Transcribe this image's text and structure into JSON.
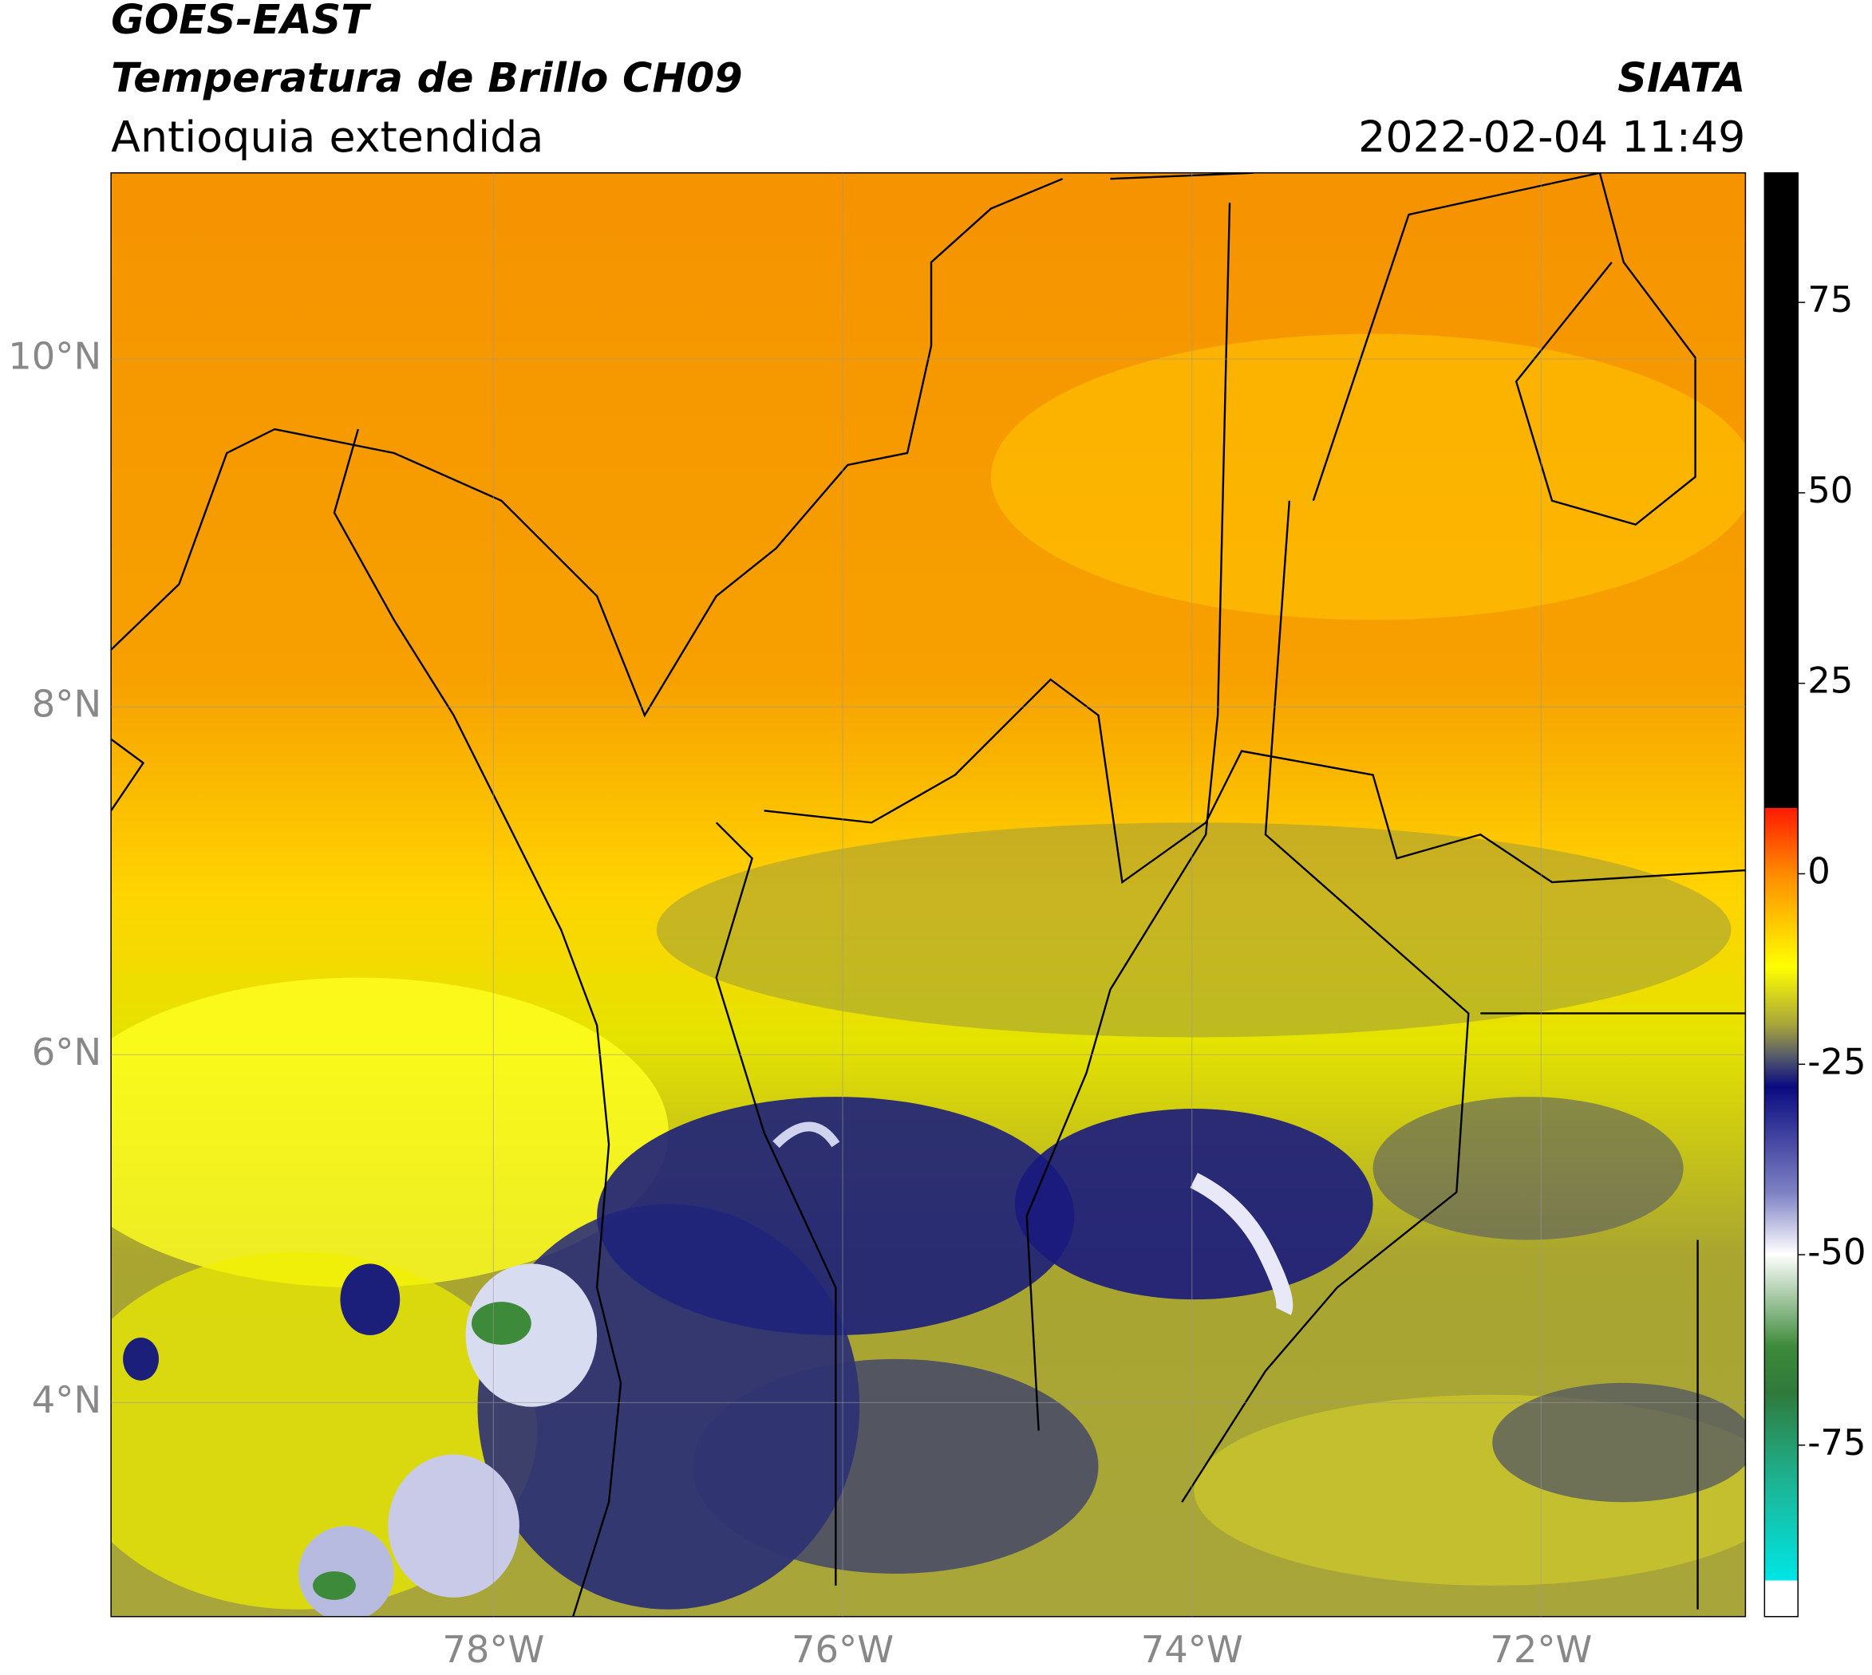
{
  "header": {
    "satellite": "GOES-EAST",
    "product": "Temperatura de Brillo CH09",
    "region": "Antioquia extendida",
    "agency": "SIATA",
    "datetime": "2022-02-04 11:49"
  },
  "map": {
    "xlim": [
      -80.19,
      -70.83
    ],
    "ylim": [
      2.77,
      11.07
    ],
    "xticks": [
      {
        "value": -78,
        "label": "78°W"
      },
      {
        "value": -76,
        "label": "76°W"
      },
      {
        "value": -74,
        "label": "74°W"
      },
      {
        "value": -72,
        "label": "72°W"
      }
    ],
    "yticks": [
      {
        "value": 4,
        "label": "4°N"
      },
      {
        "value": 6,
        "label": "6°N"
      },
      {
        "value": 8,
        "label": "8°N"
      },
      {
        "value": 10,
        "label": "10°N"
      }
    ],
    "grid": true
  },
  "colorbar": {
    "lim": [
      -97.5,
      92
    ],
    "ticks": [
      75,
      50,
      25,
      0,
      -25,
      -50,
      -75
    ]
  }
}
